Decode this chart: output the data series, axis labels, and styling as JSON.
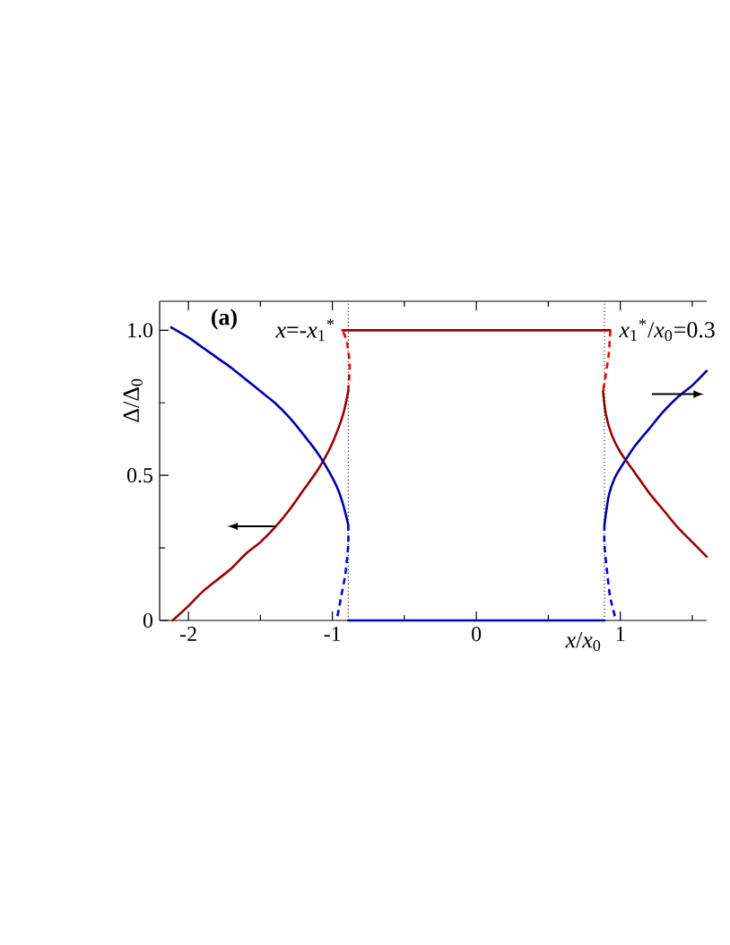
{
  "chart_data": {
    "type": "line",
    "xlabel": "*x*/*x*$_{0}$",
    "ylabel": "Δ/Δ$_{0}$",
    "xlim": [
      -2.2,
      1.6
    ],
    "ylim": [
      0,
      1.1
    ],
    "xticks": [
      -2,
      {
        "value": -1.5,
        "label": null
      },
      -1,
      {
        "value": -0.5,
        "label": null
      },
      0,
      {
        "value": 0.5,
        "label": null
      },
      1,
      {
        "value": 1.5,
        "label": null
      }
    ],
    "yticks": [
      0,
      {
        "value": 0.25,
        "label": null
      },
      0.5,
      {
        "value": 0.75,
        "label": null
      },
      {
        "value": 1,
        "label": "1.0"
      }
    ],
    "series": [
      {
        "color": "#990000",
        "x": [
          -2.11,
          -2.0,
          -1.9,
          -1.8,
          -1.7,
          -1.6,
          -1.5,
          -1.4,
          -1.3,
          -1.2,
          -1.1,
          -1.02,
          -0.96,
          -0.92,
          -0.89
        ],
        "values": [
          0,
          0.05,
          0.1,
          0.14,
          0.18,
          0.23,
          0.27,
          0.32,
          0.38,
          0.45,
          0.52,
          0.59,
          0.66,
          0.72,
          0.79
        ]
      },
      {
        "color": "#ff0000",
        "line_style": "dashed",
        "x": [
          -0.89,
          -0.88,
          -0.9,
          -0.93
        ],
        "values": [
          0.79,
          0.88,
          0.96,
          1.0
        ]
      },
      {
        "color": "#990000",
        "x": [
          -0.93,
          0.93
        ],
        "values": [
          1,
          1
        ]
      },
      {
        "color": "#ff0000",
        "line_style": "dashed",
        "x": [
          0.93,
          0.92,
          0.9,
          0.88
        ],
        "values": [
          1.0,
          0.92,
          0.85,
          0.79
        ]
      },
      {
        "color": "#990000",
        "x": [
          0.88,
          0.9,
          0.94,
          1.0,
          1.1,
          1.2,
          1.3,
          1.4,
          1.5,
          1.6
        ],
        "values": [
          0.79,
          0.71,
          0.64,
          0.58,
          0.51,
          0.44,
          0.38,
          0.32,
          0.27,
          0.22
        ]
      },
      {
        "color": "#0000aa",
        "x": [
          -2.12,
          -2.0,
          -1.9,
          -1.8,
          -1.7,
          -1.6,
          -1.5,
          -1.4,
          -1.3,
          -1.2,
          -1.1,
          -1.02,
          -0.96,
          -0.92,
          -0.89
        ],
        "values": [
          1.01,
          0.975,
          0.94,
          0.905,
          0.87,
          0.83,
          0.79,
          0.75,
          0.7,
          0.64,
          0.575,
          0.51,
          0.45,
          0.39,
          0.33
        ]
      },
      {
        "color": "#0000ff",
        "line_style": "dashed",
        "x": [
          -0.89,
          -0.89,
          -0.91,
          -0.94,
          -0.97
        ],
        "values": [
          0.33,
          0.26,
          0.16,
          0.08,
          0
        ]
      },
      {
        "color": "#0000aa",
        "x": [
          -0.89,
          0.89
        ],
        "values": [
          0,
          0
        ]
      },
      {
        "color": "#0000ff",
        "line_style": "dashed",
        "x": [
          0.89,
          0.89,
          0.91,
          0.93,
          0.97
        ],
        "values": [
          0.33,
          0.26,
          0.16,
          0.08,
          0
        ]
      },
      {
        "color": "#0000aa",
        "x": [
          0.89,
          0.92,
          0.96,
          1.02,
          1.1,
          1.2,
          1.3,
          1.4,
          1.5,
          1.6
        ],
        "values": [
          0.33,
          0.43,
          0.49,
          0.54,
          0.6,
          0.66,
          0.72,
          0.77,
          0.81,
          0.86
        ]
      }
    ],
    "ref_lines": [
      {
        "axis": "x",
        "value": -0.89,
        "label": "*x*=-*x*$_{1}$$^{*}$",
        "line_style": "dotted",
        "color": "#000000"
      },
      {
        "axis": "x",
        "value": 0.89,
        "label": "*x*$_{1}$$^{*}$/*x*$_{0}$=0.3",
        "line_style": "dotted",
        "color": "#000000"
      }
    ],
    "annotations": [
      "(a)"
    ]
  }
}
